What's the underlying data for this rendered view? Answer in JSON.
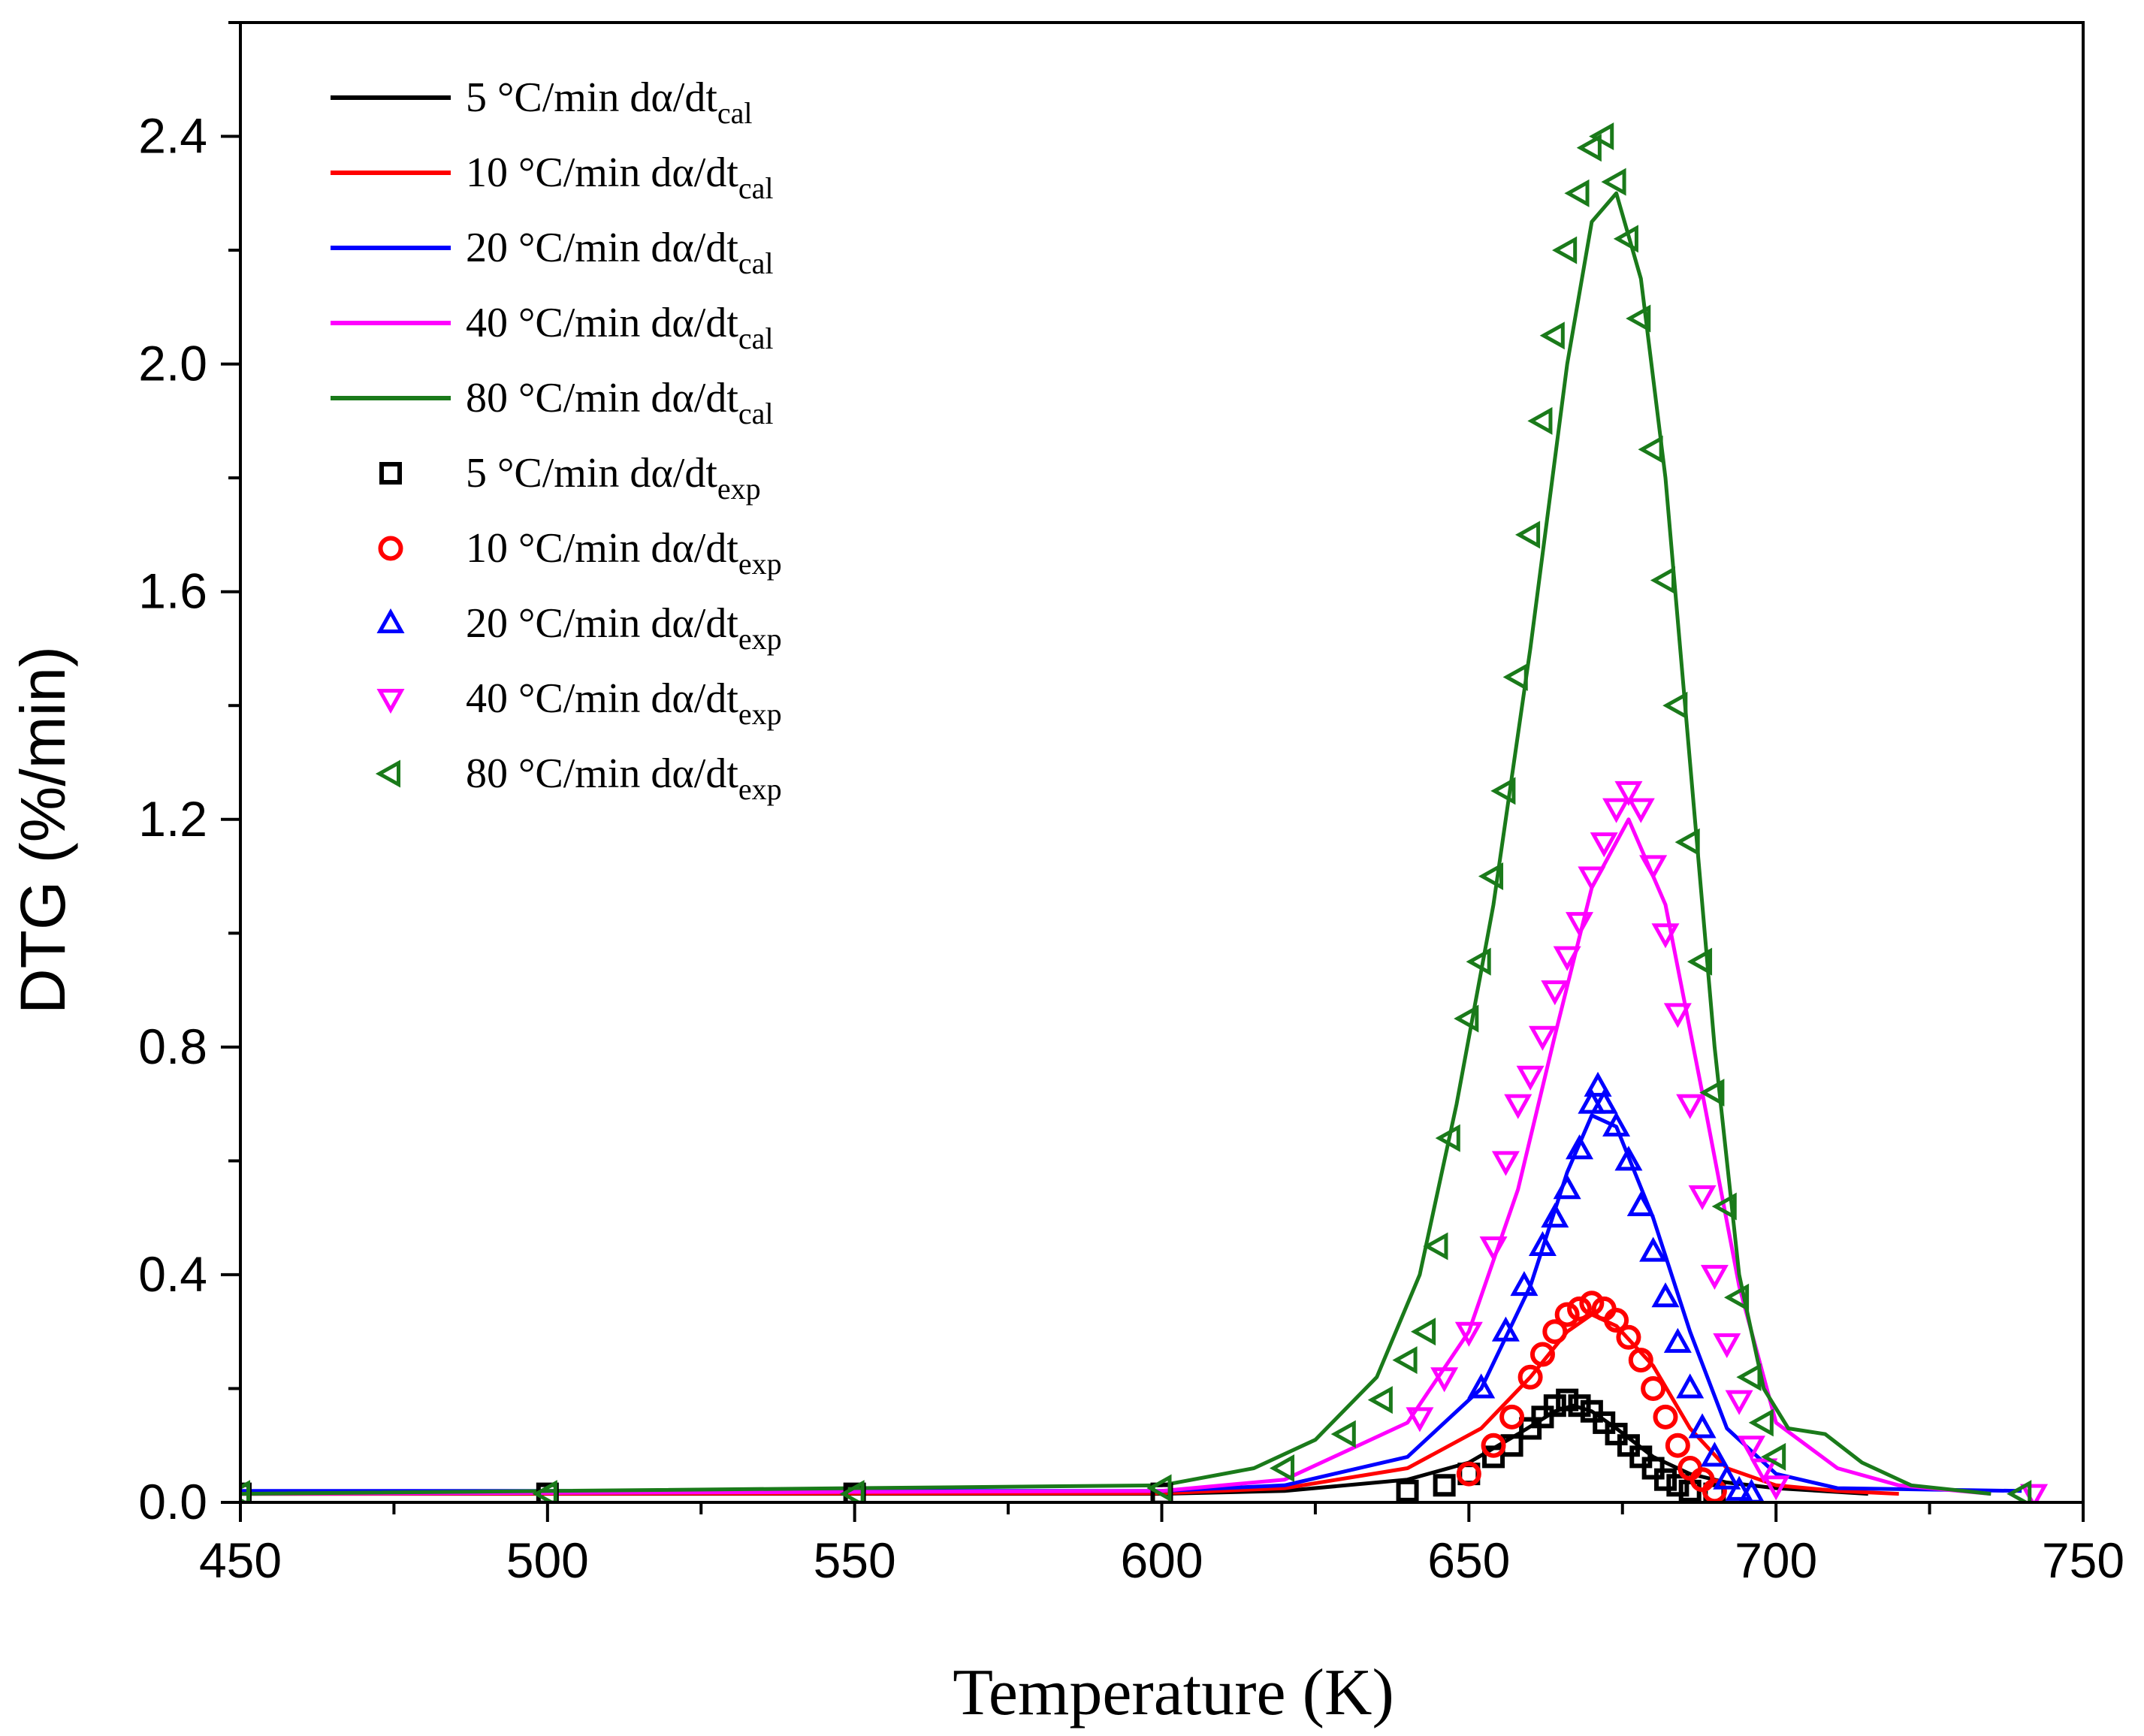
{
  "chart_data": {
    "type": "line",
    "title": "",
    "xlabel": "Temperature (K)",
    "ylabel": "DTG (%/min)",
    "xlim": [
      450,
      750
    ],
    "ylim": [
      0,
      2.6
    ],
    "x_ticks": [
      "450",
      "500",
      "550",
      "600",
      "650",
      "700",
      "750"
    ],
    "y_ticks": [
      "0.0",
      "0.4",
      "0.8",
      "1.2",
      "1.6",
      "2.0",
      "2.4"
    ],
    "grid": false,
    "legend_position": "top-left",
    "series": [
      {
        "name": "5 °C/min dα/dt",
        "subscript": "cal",
        "kind": "line",
        "color": "#000000",
        "x": [
          450,
          600,
          620,
          640,
          650,
          658,
          664,
          667,
          670,
          674,
          680,
          686,
          692,
          700,
          715
        ],
        "y": [
          0.015,
          0.015,
          0.02,
          0.04,
          0.07,
          0.12,
          0.16,
          0.17,
          0.16,
          0.13,
          0.08,
          0.05,
          0.035,
          0.025,
          0.015
        ]
      },
      {
        "name": "10 °C/min dα/dt",
        "subscript": "cal",
        "kind": "line",
        "color": "#ff0000",
        "x": [
          450,
          600,
          620,
          640,
          652,
          660,
          666,
          670,
          674,
          680,
          686,
          692,
          700,
          710,
          720
        ],
        "y": [
          0.015,
          0.016,
          0.025,
          0.06,
          0.13,
          0.22,
          0.3,
          0.33,
          0.31,
          0.24,
          0.13,
          0.06,
          0.03,
          0.02,
          0.015
        ]
      },
      {
        "name": "20 °C/min dα/dt",
        "subscript": "cal",
        "kind": "line",
        "color": "#0000ff",
        "x": [
          450,
          600,
          620,
          640,
          652,
          660,
          666,
          670,
          674,
          680,
          686,
          692,
          700,
          710,
          740
        ],
        "y": [
          0.02,
          0.02,
          0.03,
          0.08,
          0.2,
          0.38,
          0.58,
          0.68,
          0.66,
          0.5,
          0.3,
          0.13,
          0.05,
          0.025,
          0.02
        ]
      },
      {
        "name": "40 °C/min dα/dt",
        "subscript": "cal",
        "kind": "line",
        "color": "#ff00ff",
        "x": [
          450,
          600,
          620,
          640,
          650,
          658,
          664,
          670,
          676,
          682,
          688,
          694,
          700,
          710,
          720,
          735
        ],
        "y": [
          0.015,
          0.02,
          0.04,
          0.14,
          0.3,
          0.55,
          0.82,
          1.08,
          1.2,
          1.05,
          0.72,
          0.38,
          0.14,
          0.06,
          0.03,
          0.015
        ]
      },
      {
        "name": "80 °C/min dα/dt",
        "subscript": "cal",
        "kind": "line",
        "color": "#1a7a1a",
        "x": [
          450,
          600,
          615,
          625,
          635,
          642,
          648,
          654,
          660,
          666,
          670,
          674,
          678,
          682,
          686,
          690,
          694,
          698,
          702,
          708,
          714,
          722,
          735
        ],
        "y": [
          0.015,
          0.03,
          0.06,
          0.11,
          0.22,
          0.4,
          0.7,
          1.05,
          1.5,
          2.0,
          2.25,
          2.3,
          2.15,
          1.8,
          1.3,
          0.8,
          0.4,
          0.2,
          0.13,
          0.12,
          0.07,
          0.03,
          0.015
        ]
      },
      {
        "name": "5 °C/min dα/dt",
        "subscript": "exp",
        "kind": "marker",
        "marker": "square",
        "color": "#000000",
        "x": [
          450,
          500,
          550,
          600,
          640,
          646,
          650,
          654,
          657,
          660,
          662,
          664,
          666,
          668,
          670,
          672,
          674,
          676,
          678,
          680,
          682,
          684,
          686,
          690
        ],
        "y": [
          0.015,
          0.015,
          0.015,
          0.015,
          0.02,
          0.03,
          0.05,
          0.08,
          0.1,
          0.13,
          0.15,
          0.17,
          0.18,
          0.17,
          0.16,
          0.14,
          0.12,
          0.1,
          0.08,
          0.06,
          0.04,
          0.03,
          0.02,
          0.015
        ]
      },
      {
        "name": "10 °C/min dα/dt",
        "subscript": "exp",
        "kind": "marker",
        "marker": "circle",
        "color": "#ff0000",
        "x": [
          650,
          654,
          657,
          660,
          662,
          664,
          666,
          668,
          670,
          672,
          674,
          676,
          678,
          680,
          682,
          684,
          686,
          688,
          690
        ],
        "y": [
          0.05,
          0.1,
          0.15,
          0.22,
          0.26,
          0.3,
          0.33,
          0.34,
          0.35,
          0.34,
          0.32,
          0.29,
          0.25,
          0.2,
          0.15,
          0.1,
          0.06,
          0.04,
          0.02
        ]
      },
      {
        "name": "20 °C/min dα/dt",
        "subscript": "exp",
        "kind": "marker",
        "marker": "triangle-up",
        "color": "#0000ff",
        "x": [
          652,
          656,
          659,
          662,
          664,
          666,
          668,
          670,
          671,
          672,
          674,
          676,
          678,
          680,
          682,
          684,
          686,
          688,
          690,
          692,
          694,
          696
        ],
        "y": [
          0.2,
          0.3,
          0.38,
          0.45,
          0.5,
          0.55,
          0.62,
          0.7,
          0.73,
          0.7,
          0.66,
          0.6,
          0.52,
          0.44,
          0.36,
          0.28,
          0.2,
          0.13,
          0.08,
          0.04,
          0.02,
          0.015
        ]
      },
      {
        "name": "40 °C/min dα/dt",
        "subscript": "exp",
        "kind": "marker",
        "marker": "triangle-down",
        "color": "#ff00ff",
        "x": [
          642,
          646,
          650,
          654,
          656,
          658,
          660,
          662,
          664,
          666,
          668,
          670,
          672,
          674,
          676,
          678,
          680,
          682,
          684,
          686,
          688,
          690,
          692,
          694,
          696,
          698,
          700,
          742
        ],
        "y": [
          0.15,
          0.22,
          0.3,
          0.45,
          0.6,
          0.7,
          0.75,
          0.82,
          0.9,
          0.96,
          1.02,
          1.1,
          1.16,
          1.22,
          1.25,
          1.22,
          1.12,
          1.0,
          0.86,
          0.7,
          0.54,
          0.4,
          0.28,
          0.18,
          0.1,
          0.06,
          0.03,
          0.015
        ]
      },
      {
        "name": "80 °C/min dα/dt",
        "subscript": "exp",
        "kind": "marker",
        "marker": "triangle-left",
        "color": "#1a7a1a",
        "x": [
          450,
          500,
          550,
          600,
          620,
          630,
          636,
          640,
          643,
          645,
          647,
          650,
          652,
          654,
          656,
          658,
          660,
          662,
          664,
          666,
          668,
          670,
          672,
          674,
          676,
          678,
          680,
          682,
          684,
          686,
          688,
          690,
          692,
          694,
          696,
          698,
          700,
          740
        ],
        "y": [
          0.015,
          0.015,
          0.015,
          0.025,
          0.06,
          0.12,
          0.18,
          0.25,
          0.3,
          0.45,
          0.64,
          0.85,
          0.95,
          1.1,
          1.25,
          1.45,
          1.7,
          1.9,
          2.05,
          2.2,
          2.3,
          2.38,
          2.4,
          2.32,
          2.22,
          2.08,
          1.85,
          1.62,
          1.4,
          1.16,
          0.95,
          0.72,
          0.52,
          0.36,
          0.22,
          0.14,
          0.08,
          0.015
        ]
      }
    ]
  }
}
